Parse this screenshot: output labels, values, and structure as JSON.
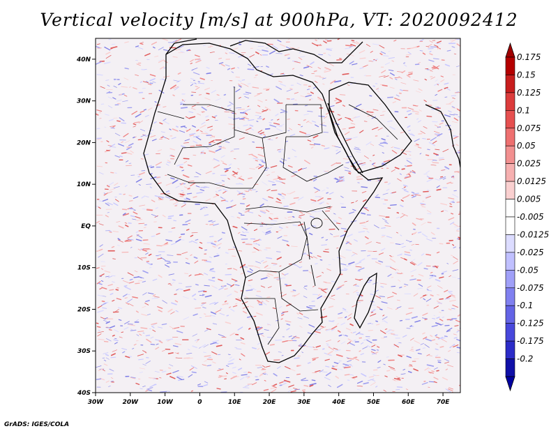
{
  "title": "Vertical velocity [m/s] at 900hPa, VT: 2020092412",
  "footer": "GrADS: IGES/COLA",
  "map": {
    "projection": "latlon",
    "lon_range": [
      -30,
      75
    ],
    "lat_range": [
      -40,
      45
    ],
    "x_tick_labels": [
      "30W",
      "20W",
      "10W",
      "0",
      "10E",
      "20E",
      "30E",
      "40E",
      "50E",
      "60E",
      "70E"
    ],
    "y_tick_labels": [
      "40N",
      "30N",
      "20N",
      "10N",
      "EQ",
      "10S",
      "20S",
      "30S",
      "40S"
    ],
    "field_description": "fine-scale red/blue speckled vertical velocity field"
  },
  "colorbar": {
    "labels": [
      "0.175",
      "0.15",
      "0.125",
      "0.1",
      "0.075",
      "0.05",
      "0.025",
      "0.0125",
      "0.005",
      "-0.005",
      "-0.0125",
      "-0.025",
      "-0.05",
      "-0.075",
      "-0.1",
      "-0.125",
      "-0.175",
      "-0.2"
    ],
    "colors": [
      "#b40000",
      "#c81e1e",
      "#dc3c3c",
      "#e65050",
      "#ee7070",
      "#f29090",
      "#f6b0b0",
      "#fad0d0",
      "#ffffff",
      "#ffffff",
      "#dcdcff",
      "#c0c0ff",
      "#a0a0f8",
      "#8080f0",
      "#6464e6",
      "#4848dc",
      "#2c2cc8",
      "#1010a8"
    ],
    "tip_top_color": "#a00000",
    "tip_bottom_color": "#0000a0"
  }
}
